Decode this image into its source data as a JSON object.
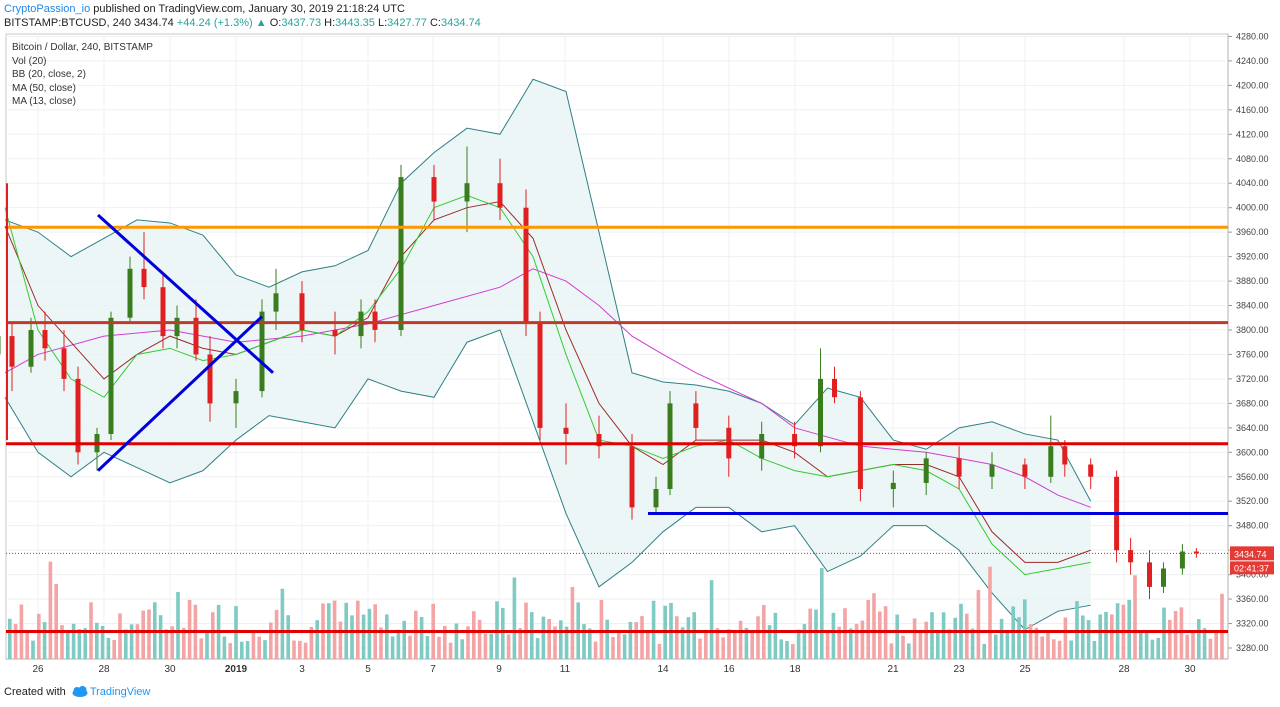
{
  "header": {
    "author": "CryptoPassion_io",
    "published_text": "published on TradingView.com, January 30, 2019 21:18:24 UTC",
    "symbol": "BITSTAMP:BTCUSD, 240",
    "last": "3434.74",
    "change": "+44.24 (+1.3%)",
    "o_label": "O:",
    "o_value": "3437.73",
    "h_label": "H:",
    "h_value": "3443.35",
    "l_label": "L:",
    "l_value": "3427.77",
    "c_label": "C:",
    "c_value": "3434.74"
  },
  "legend": [
    "Bitcoin / Dollar, 240, BITSTAMP",
    "Vol (20)",
    "BB (20, close, 2)",
    "MA (50, close)",
    "MA (13, close)"
  ],
  "price_tag": "3434.74",
  "countdown_tag": "02:41:37",
  "footer": {
    "created_with": "Created with",
    "brand": "TradingView"
  },
  "colors": {
    "bull": "#3a7d1e",
    "bear": "#e02020",
    "bull_vol": "#7fcac3",
    "bear_vol": "#f4a4a4",
    "bb": "#2f7f86",
    "ma50": "#d23cd2",
    "ma13": "#9d2a2a",
    "bb_basis": "#33cc33",
    "orange": "#ff9800",
    "red_line": "#e00000",
    "blue_line": "#0000dd"
  },
  "chart_data": {
    "type": "candlestick",
    "title": "Bitcoin / Dollar, 240, BITSTAMP",
    "y_ticks": [
      3280,
      3320,
      3360,
      3400,
      3440,
      3480,
      3520,
      3560,
      3600,
      3640,
      3680,
      3720,
      3760,
      3800,
      3840,
      3880,
      3920,
      3960,
      4000,
      4040,
      4080,
      4120,
      4160,
      4200,
      4240,
      4280
    ],
    "ylim": [
      3262,
      4284
    ],
    "x_ticks": [
      "26",
      "28",
      "30",
      "2019",
      "3",
      "5",
      "7",
      "9",
      "11",
      "14",
      "16",
      "18",
      "21",
      "23",
      "25",
      "28",
      "30"
    ],
    "horizontal_levels": [
      {
        "price": 3968,
        "color": "orange"
      },
      {
        "price": 3812,
        "color": "brown"
      },
      {
        "price": 3614,
        "color": "red"
      },
      {
        "price": 3307,
        "color": "red"
      },
      {
        "price": 3500,
        "color": "blue",
        "from": "14",
        "to": "30"
      }
    ],
    "trendlines": [
      {
        "from": [
          "27",
          3988
        ],
        "to": [
          "2019 Jan 2",
          3730
        ],
        "color": "blue"
      },
      {
        "from": [
          "28",
          3570
        ],
        "to": [
          "2019 Jan 2",
          3822
        ],
        "color": "blue"
      }
    ],
    "candles": [
      {
        "t": "Dec 25",
        "o": 3760,
        "h": 3840,
        "l": 3720,
        "c": 3790
      },
      {
        "t": "Dec 25",
        "o": 3790,
        "h": 3810,
        "l": 3700,
        "c": 3740
      },
      {
        "t": "Dec 26",
        "o": 3740,
        "h": 3820,
        "l": 3730,
        "c": 3800
      },
      {
        "t": "Dec 26",
        "o": 3800,
        "h": 3830,
        "l": 3750,
        "c": 3770
      },
      {
        "t": "Dec 27",
        "o": 3770,
        "h": 3800,
        "l": 3700,
        "c": 3720
      },
      {
        "t": "Dec 27",
        "o": 3720,
        "h": 3740,
        "l": 3580,
        "c": 3600
      },
      {
        "t": "Dec 28",
        "o": 3600,
        "h": 3640,
        "l": 3570,
        "c": 3630
      },
      {
        "t": "Dec 28",
        "o": 3630,
        "h": 3830,
        "l": 3620,
        "c": 3820
      },
      {
        "t": "Dec 29",
        "o": 3820,
        "h": 3920,
        "l": 3810,
        "c": 3900
      },
      {
        "t": "Dec 29",
        "o": 3900,
        "h": 3960,
        "l": 3850,
        "c": 3870
      },
      {
        "t": "Dec 30",
        "o": 3870,
        "h": 3890,
        "l": 3770,
        "c": 3790
      },
      {
        "t": "Dec 30",
        "o": 3790,
        "h": 3840,
        "l": 3770,
        "c": 3820
      },
      {
        "t": "Dec 31",
        "o": 3820,
        "h": 3850,
        "l": 3750,
        "c": 3760
      },
      {
        "t": "Dec 31",
        "o": 3760,
        "h": 3790,
        "l": 3650,
        "c": 3680
      },
      {
        "t": "Jan 1",
        "o": 3680,
        "h": 3720,
        "l": 3640,
        "c": 3700
      },
      {
        "t": "Jan 2",
        "o": 3700,
        "h": 3850,
        "l": 3690,
        "c": 3830
      },
      {
        "t": "Jan 2",
        "o": 3830,
        "h": 3900,
        "l": 3800,
        "c": 3860
      },
      {
        "t": "Jan 3",
        "o": 3860,
        "h": 3880,
        "l": 3780,
        "c": 3800
      },
      {
        "t": "Jan 4",
        "o": 3800,
        "h": 3830,
        "l": 3760,
        "c": 3790
      },
      {
        "t": "Jan 5",
        "o": 3790,
        "h": 3850,
        "l": 3770,
        "c": 3830
      },
      {
        "t": "Jan 5",
        "o": 3830,
        "h": 3850,
        "l": 3780,
        "c": 3800
      },
      {
        "t": "Jan 6",
        "o": 3800,
        "h": 4070,
        "l": 3790,
        "c": 4050
      },
      {
        "t": "Jan 7",
        "o": 4050,
        "h": 4070,
        "l": 3980,
        "c": 4010
      },
      {
        "t": "Jan 8",
        "o": 4010,
        "h": 4100,
        "l": 3960,
        "c": 4040
      },
      {
        "t": "Jan 9",
        "o": 4040,
        "h": 4080,
        "l": 3980,
        "c": 4000
      },
      {
        "t": "Jan 10",
        "o": 4000,
        "h": 4030,
        "l": 3790,
        "c": 3810
      },
      {
        "t": "Jan 10",
        "o": 3810,
        "h": 3830,
        "l": 3620,
        "c": 3640
      },
      {
        "t": "Jan 11",
        "o": 3640,
        "h": 3680,
        "l": 3580,
        "c": 3630
      },
      {
        "t": "Jan 12",
        "o": 3630,
        "h": 3660,
        "l": 3590,
        "c": 3610
      },
      {
        "t": "Jan 13",
        "o": 3610,
        "h": 3630,
        "l": 3490,
        "c": 3510
      },
      {
        "t": "Jan 14",
        "o": 3510,
        "h": 3560,
        "l": 3500,
        "c": 3540
      },
      {
        "t": "Jan 14",
        "o": 3540,
        "h": 3700,
        "l": 3530,
        "c": 3680
      },
      {
        "t": "Jan 15",
        "o": 3680,
        "h": 3700,
        "l": 3620,
        "c": 3640
      },
      {
        "t": "Jan 16",
        "o": 3640,
        "h": 3660,
        "l": 3560,
        "c": 3590
      },
      {
        "t": "Jan 17",
        "o": 3590,
        "h": 3650,
        "l": 3570,
        "c": 3630
      },
      {
        "t": "Jan 18",
        "o": 3630,
        "h": 3650,
        "l": 3590,
        "c": 3610
      },
      {
        "t": "Jan 19",
        "o": 3610,
        "h": 3770,
        "l": 3600,
        "c": 3720
      },
      {
        "t": "Jan 19",
        "o": 3720,
        "h": 3740,
        "l": 3680,
        "c": 3690
      },
      {
        "t": "Jan 20",
        "o": 3690,
        "h": 3700,
        "l": 3520,
        "c": 3540
      },
      {
        "t": "Jan 21",
        "o": 3540,
        "h": 3570,
        "l": 3510,
        "c": 3550
      },
      {
        "t": "Jan 22",
        "o": 3550,
        "h": 3600,
        "l": 3530,
        "c": 3590
      },
      {
        "t": "Jan 23",
        "o": 3590,
        "h": 3610,
        "l": 3540,
        "c": 3560
      },
      {
        "t": "Jan 24",
        "o": 3560,
        "h": 3600,
        "l": 3540,
        "c": 3580
      },
      {
        "t": "Jan 25",
        "o": 3580,
        "h": 3590,
        "l": 3540,
        "c": 3560
      },
      {
        "t": "Jan 26",
        "o": 3560,
        "h": 3660,
        "l": 3550,
        "c": 3610
      },
      {
        "t": "Jan 26",
        "o": 3610,
        "h": 3620,
        "l": 3560,
        "c": 3580
      },
      {
        "t": "Jan 27",
        "o": 3580,
        "h": 3590,
        "l": 3540,
        "c": 3560
      },
      {
        "t": "Jan 28",
        "o": 3560,
        "h": 3570,
        "l": 3420,
        "c": 3440
      },
      {
        "t": "Jan 28",
        "o": 3440,
        "h": 3460,
        "l": 3400,
        "c": 3420
      },
      {
        "t": "Jan 29",
        "o": 3420,
        "h": 3440,
        "l": 3360,
        "c": 3380
      },
      {
        "t": "Jan 29",
        "o": 3380,
        "h": 3420,
        "l": 3370,
        "c": 3410
      },
      {
        "t": "Jan 30",
        "o": 3410,
        "h": 3450,
        "l": 3400,
        "c": 3437.73
      },
      {
        "t": "Jan 30",
        "o": 3437.73,
        "h": 3443.35,
        "l": 3427.77,
        "c": 3434.74
      }
    ]
  }
}
